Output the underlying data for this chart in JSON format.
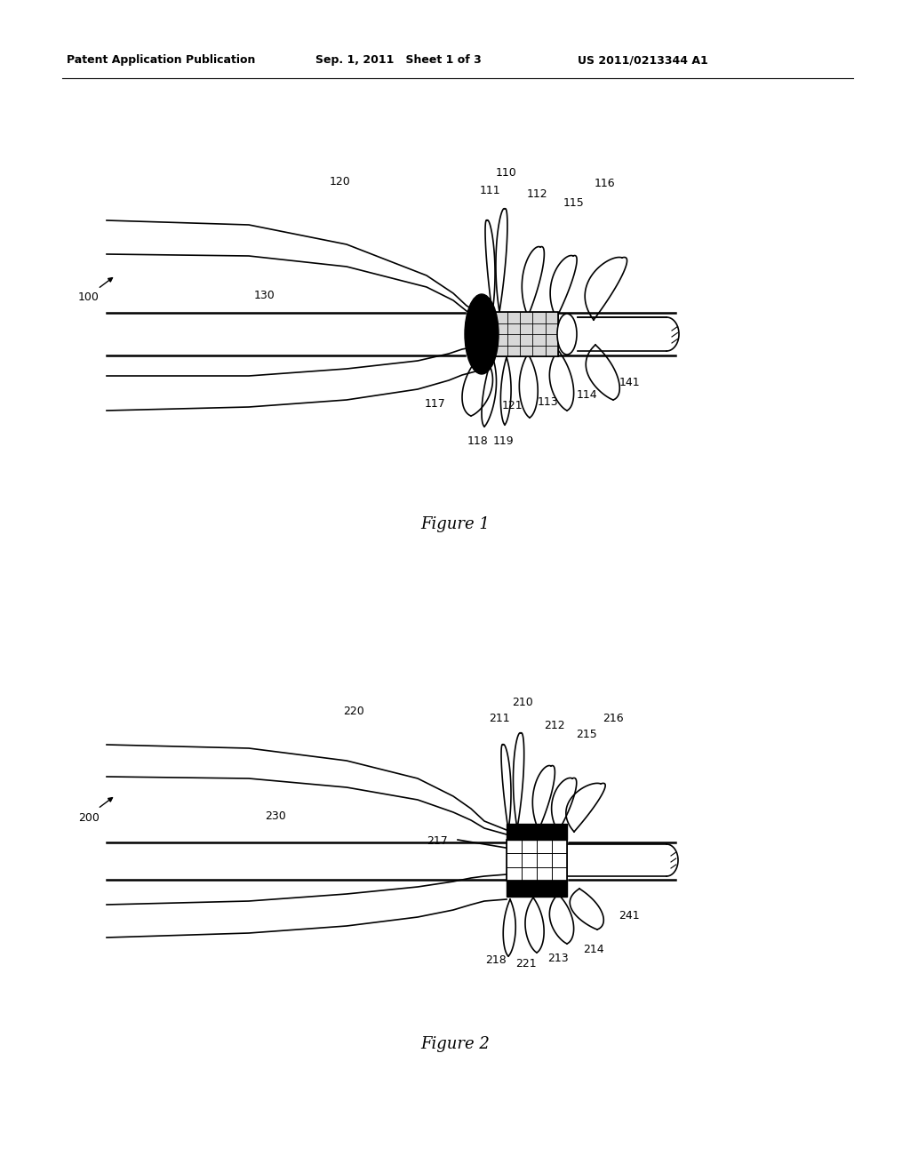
{
  "header_left": "Patent Application Publication",
  "header_mid": "Sep. 1, 2011   Sheet 1 of 3",
  "header_right": "US 2011/0213344 A1",
  "fig1_label": "Figure 1",
  "fig2_label": "Figure 2",
  "background_color": "#ffffff",
  "line_color": "#000000"
}
